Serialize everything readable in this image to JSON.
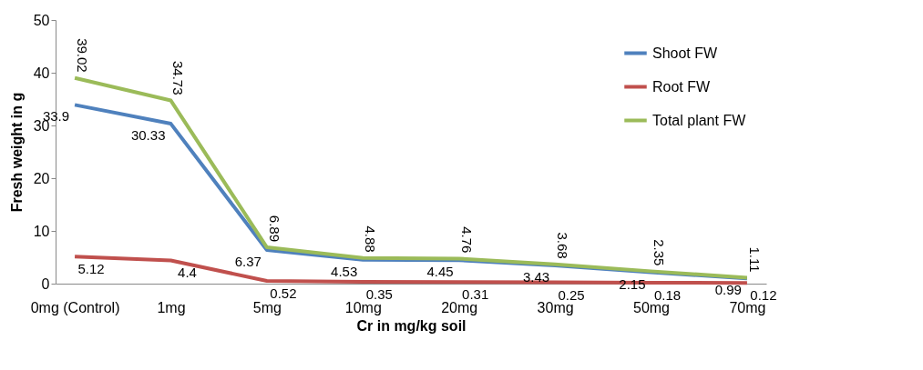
{
  "chart_data": {
    "type": "line",
    "xlabel": "Cr in mg/kg soil",
    "ylabel": "Fresh weight in g",
    "categories": [
      "0mg (Control)",
      "1mg",
      "5mg",
      "10mg",
      "20mg",
      "30mg",
      "50mg",
      "70mg"
    ],
    "series": [
      {
        "name": "Shoot FW",
        "color": "#4f81bd",
        "values": [
          33.9,
          30.33,
          6.37,
          4.53,
          4.45,
          3.43,
          2.15,
          0.99
        ]
      },
      {
        "name": "Root FW",
        "color": "#c0504d",
        "values": [
          5.12,
          4.4,
          0.52,
          0.35,
          0.31,
          0.25,
          0.18,
          0.12
        ]
      },
      {
        "name": "Total plant FW",
        "color": "#9bbb59",
        "values": [
          39.02,
          34.73,
          6.89,
          4.88,
          4.76,
          3.68,
          2.35,
          1.11
        ]
      }
    ],
    "ylim": [
      0,
      50
    ],
    "yticks": [
      0,
      10,
      20,
      30,
      40,
      50
    ],
    "grid": false,
    "legend": "top right",
    "data_labels": true,
    "marker": "none"
  }
}
